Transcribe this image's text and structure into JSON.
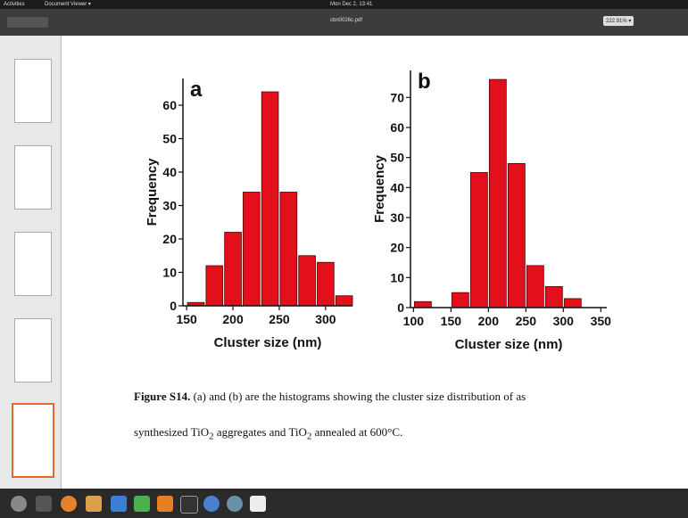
{
  "topbar": {
    "activities": "Activities",
    "app": "Document Viewer ▾",
    "clock": "Mon Dec 2, 13:41"
  },
  "toolbar": {
    "filename": "cbn0026c.pdf",
    "zoom": "222.91% ▾"
  },
  "chart_data": [
    {
      "type": "histogram",
      "annotation": "a",
      "x_label": "Cluster size (nm)",
      "y_label": "Frequency",
      "color": "#e3101c",
      "bins": [
        150,
        170,
        190,
        210,
        230,
        250,
        270,
        290,
        310,
        330
      ],
      "values": [
        1,
        12,
        22,
        34,
        64,
        34,
        15,
        13,
        3
      ],
      "xlim": [
        146,
        329
      ],
      "xticks": [
        150,
        200,
        250,
        300
      ],
      "ylim": [
        0,
        68
      ],
      "yticks": [
        0,
        10,
        20,
        30,
        40,
        50,
        60
      ]
    },
    {
      "type": "histogram",
      "annotation": "b",
      "x_label": "Cluster size (nm)",
      "y_label": "Frequency",
      "color": "#e3101c",
      "bins": [
        100,
        125,
        150,
        175,
        200,
        225,
        250,
        275,
        300,
        325
      ],
      "values": [
        2,
        0,
        5,
        45,
        76,
        48,
        14,
        7,
        3
      ],
      "xlim": [
        96,
        358
      ],
      "xticks": [
        100,
        150,
        200,
        250,
        300,
        350
      ],
      "ylim": [
        0,
        79
      ],
      "yticks": [
        0,
        10,
        20,
        30,
        40,
        50,
        60,
        70
      ]
    }
  ],
  "caption": {
    "label": "Figure S14.",
    "line1": "(a) and (b) are the histograms showing the cluster size distribution of as",
    "line2a": "synthesized TiO",
    "sub1": "2",
    "line2b": " aggregates and TiO",
    "sub2": "2",
    "line2c": " annealed at 600°C."
  }
}
